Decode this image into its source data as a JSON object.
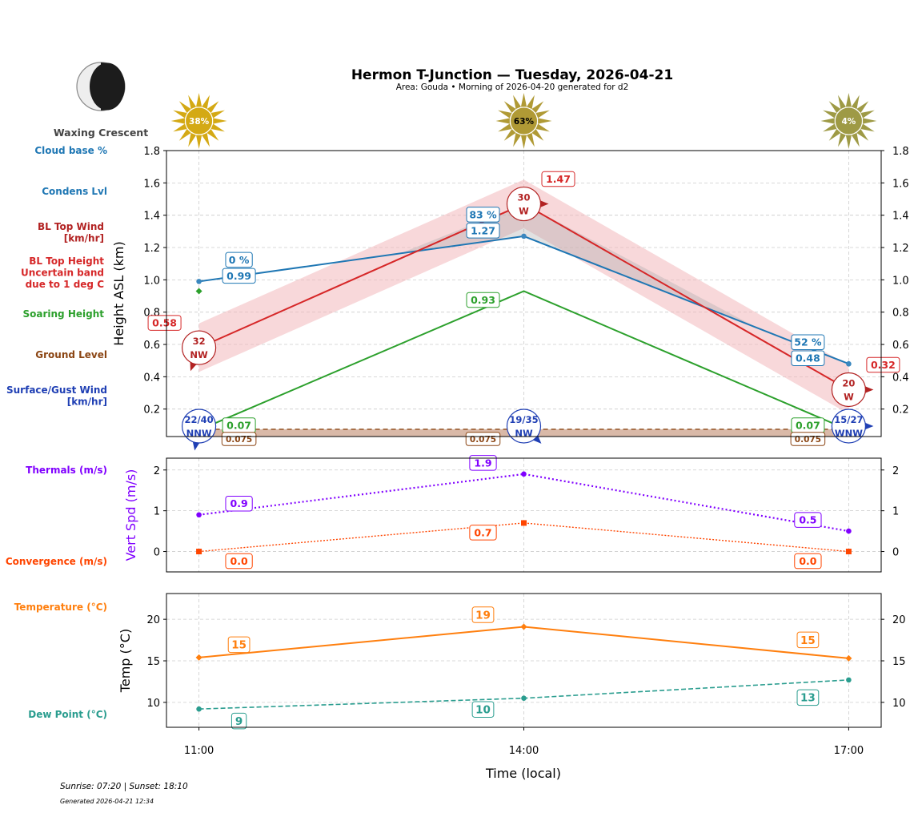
{
  "header": {
    "title": "Hermon T-Junction — Tuesday, 2026-04-21",
    "subtitle": "Area: Gouda • Morning of 2026-04-20 generated for d2"
  },
  "moon": {
    "phase": "Waxing Crescent",
    "icon": "moon-waxing-crescent-icon"
  },
  "footer": {
    "sun_times": "Sunrise: 07:20 | Sunset: 18:10",
    "generated": "Generated 2026-04-21 12:34"
  },
  "legend_labels": {
    "cloud_base": {
      "text": [
        "Cloud base %"
      ],
      "color": "#1f77b4"
    },
    "condens": {
      "text": [
        "Condens Lvl"
      ],
      "color": "#1f77b4"
    },
    "bl_wind": {
      "text": [
        "BL Top Wind",
        "[km/hr]"
      ],
      "color": "#b22222"
    },
    "bl_height": {
      "text": [
        "BL Top Height",
        "Uncertain band",
        "due to 1 deg C"
      ],
      "color": "#d62728"
    },
    "soaring": {
      "text": [
        "Soaring Height"
      ],
      "color": "#2ca02c"
    },
    "ground": {
      "text": [
        "Ground Level"
      ],
      "color": "#8b4513"
    },
    "surface_wind": {
      "text": [
        "Surface/Gust Wind",
        "[km/hr]"
      ],
      "color": "#1f3fb4"
    },
    "thermals": {
      "text": [
        "Thermals (m/s)"
      ],
      "color": "#8000ff"
    },
    "convergence": {
      "text": [
        "Convergence (m/s)"
      ],
      "color": "#ff4500"
    },
    "temperature": {
      "text": [
        "Temperature (°C)"
      ],
      "color": "#ff7f0e"
    },
    "dew_point": {
      "text": [
        "Dew Point (°C)"
      ],
      "color": "#2a9d8f"
    }
  },
  "x_axis": {
    "label": "Time (local)",
    "ticks": [
      "11:00",
      "14:00",
      "17:00"
    ]
  },
  "chart_data": [
    {
      "type": "line",
      "ylabel": "Height ASL (km)",
      "x": [
        "11:00",
        "14:00",
        "17:00"
      ],
      "ylim": [
        0.03,
        1.8
      ],
      "yticks": [
        "0.2",
        "0.4",
        "0.6",
        "0.8",
        "1.0",
        "1.2",
        "1.4",
        "1.6",
        "1.8"
      ],
      "grid": true,
      "sun_percent": [
        {
          "label": "38%",
          "color": "#d4a914",
          "text_color": "#ffffff"
        },
        {
          "label": "63%",
          "color": "#b09a35",
          "text_color": "#000000"
        },
        {
          "label": "4%",
          "color": "#9e9a45",
          "text_color": "#ffffff"
        }
      ],
      "series": {
        "condens_level": {
          "values": [
            0.99,
            1.27,
            0.48
          ],
          "labels": [
            "0.99",
            "1.27",
            "0.48"
          ],
          "color": "#1f77b4"
        },
        "cloud_base_pct": {
          "values": [
            0,
            83,
            52
          ],
          "labels": [
            "0 %",
            "83 %",
            "52 %"
          ],
          "color": "#1f77b4"
        },
        "bl_top": {
          "values": [
            0.58,
            1.47,
            0.32
          ],
          "labels": [
            "0.58",
            "1.47",
            "0.32"
          ],
          "band": [
            [
              0.43,
              0.73
            ],
            [
              1.32,
              1.62
            ],
            [
              0.17,
              0.47
            ]
          ],
          "color": "#d62728"
        },
        "bl_wind": {
          "labels": [
            [
              "32",
              "NW"
            ],
            [
              "30",
              "W"
            ],
            [
              "20",
              "W"
            ]
          ],
          "color": "#b22222"
        },
        "soaring": {
          "values": [
            0.07,
            0.93,
            0.07
          ],
          "labels": [
            "0.07",
            "0.93",
            "0.07"
          ],
          "color": "#2ca02c"
        },
        "ground": {
          "values": [
            0.075,
            0.075,
            0.075
          ],
          "labels": [
            "0.075",
            "0.075",
            "0.075"
          ],
          "color": "#8b4513"
        },
        "surface_wind": {
          "labels": [
            [
              "22/40",
              "NNW"
            ],
            [
              "19/35",
              "NW"
            ],
            [
              "15/27",
              "WNW"
            ]
          ],
          "color": "#1f3fb4"
        }
      }
    },
    {
      "type": "line",
      "ylabel": "Vert Spd (m/s)",
      "x": [
        "11:00",
        "14:00",
        "17:00"
      ],
      "ylim": [
        -0.5,
        2.29
      ],
      "yticks": [
        "0",
        "1",
        "2"
      ],
      "grid": true,
      "series": {
        "thermals": {
          "values": [
            0.9,
            1.9,
            0.5
          ],
          "labels": [
            "0.9",
            "1.9",
            "0.5"
          ],
          "color": "#8000ff"
        },
        "convergence": {
          "values": [
            0.0,
            0.7,
            0.0
          ],
          "labels": [
            "0.0",
            "0.7",
            "0.0"
          ],
          "color": "#ff4500"
        }
      }
    },
    {
      "type": "line",
      "ylabel": "Temp (°C)",
      "x": [
        "11:00",
        "14:00",
        "17:00"
      ],
      "ylim": [
        7.0,
        23.1
      ],
      "yticks": [
        "10",
        "15",
        "20"
      ],
      "grid": true,
      "series": {
        "temperature": {
          "values": [
            15.4,
            19.1,
            15.3
          ],
          "labels": [
            "15",
            "19",
            "15"
          ],
          "color": "#ff7f0e"
        },
        "dew_point": {
          "values": [
            9.2,
            10.5,
            12.7
          ],
          "labels": [
            "9",
            "10",
            "13"
          ],
          "color": "#2a9d8f"
        }
      }
    }
  ]
}
